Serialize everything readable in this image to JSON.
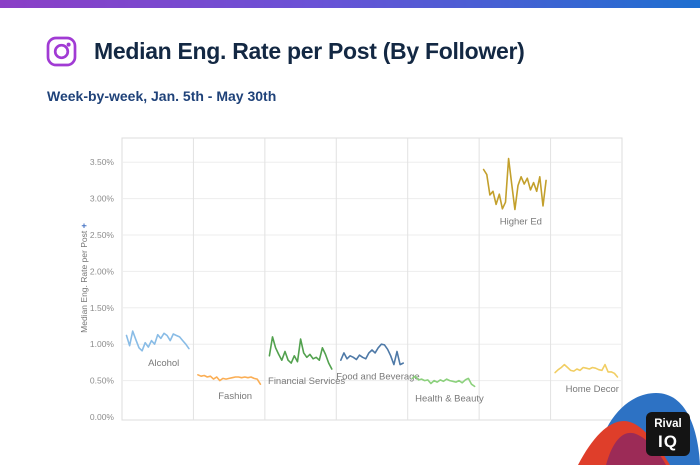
{
  "page": {
    "accent_bar_from": "#8B3FC6",
    "accent_bar_to": "#1E6FD0",
    "background": "#ffffff"
  },
  "header": {
    "title": "Median Eng. Rate per Post (By Follower)",
    "subtitle": "Week-by-week, Jan. 5th - May 30th",
    "platform_icon": "instagram-icon",
    "platform_icon_color": "#A13BD4",
    "title_color": "#132843",
    "subtitle_color": "#1F4279"
  },
  "brand": {
    "line1": "Rival",
    "line2": "IQ"
  },
  "chart_data": {
    "type": "line",
    "layout": "small-multiples-7-panels",
    "title": "Median Eng. Rate per Post (By Follower)",
    "subtitle": "Week-by-week, Jan. 5th - May 30th",
    "xlabel": "",
    "ylabel": "Median Eng. Rate per Post",
    "ylabel_icon": "sort-icon",
    "ylabel_icon_glyph": "+",
    "ylabel_icon_color": "#4472C4",
    "x_unit": "week",
    "x_range": "Jan 5 - May 30, weekly (21 points per series)",
    "ylim": [
      0,
      3.85
    ],
    "yticks": [
      "0.00%",
      "0.50%",
      "1.00%",
      "1.50%",
      "2.00%",
      "2.50%",
      "3.00%",
      "3.50%"
    ],
    "grid": true,
    "legend_position": "inline-labels-below-lines",
    "grid_color": "#EDEDED",
    "panel_divider_color": "#E2E2E2",
    "axis_text_color": "#8D8D8D",
    "label_text_color": "#797979",
    "series": [
      {
        "name": "Alcohol",
        "color": "#89BCE6",
        "values": [
          1.12,
          0.98,
          1.18,
          1.06,
          0.95,
          0.91,
          1.02,
          0.96,
          1.05,
          1.0,
          1.13,
          1.08,
          1.15,
          1.12,
          1.05,
          1.14,
          1.12,
          1.1,
          1.05,
          1.0,
          0.94
        ]
      },
      {
        "name": "Fashion",
        "color": "#FBAE54",
        "values": [
          0.58,
          0.56,
          0.57,
          0.55,
          0.56,
          0.52,
          0.55,
          0.5,
          0.53,
          0.52,
          0.53,
          0.54,
          0.55,
          0.55,
          0.54,
          0.55,
          0.54,
          0.55,
          0.53,
          0.52,
          0.45
        ]
      },
      {
        "name": "Financial Services",
        "color": "#52A14E",
        "values": [
          0.84,
          1.1,
          0.95,
          0.86,
          0.78,
          0.9,
          0.78,
          0.74,
          0.84,
          0.76,
          1.07,
          0.88,
          0.82,
          0.86,
          0.8,
          0.82,
          0.78,
          0.95,
          0.86,
          0.74,
          0.66
        ]
      },
      {
        "name": "Food and Beverage",
        "color": "#4E79A7",
        "values": [
          0.78,
          0.88,
          0.8,
          0.84,
          0.82,
          0.79,
          0.85,
          0.82,
          0.8,
          0.88,
          0.92,
          0.88,
          0.95,
          1.0,
          0.99,
          0.93,
          0.84,
          0.72,
          0.9,
          0.72,
          0.74
        ]
      },
      {
        "name": "Health & Beauty",
        "color": "#8CD17D",
        "values": [
          0.53,
          0.56,
          0.51,
          0.52,
          0.5,
          0.51,
          0.46,
          0.5,
          0.48,
          0.51,
          0.49,
          0.52,
          0.5,
          0.49,
          0.48,
          0.5,
          0.47,
          0.51,
          0.53,
          0.45,
          0.42
        ]
      },
      {
        "name": "Higher Ed",
        "color": "#C3A02C",
        "values": [
          3.4,
          3.33,
          3.05,
          3.1,
          2.92,
          3.06,
          2.86,
          2.95,
          3.55,
          3.2,
          2.85,
          3.18,
          3.3,
          3.2,
          3.28,
          3.12,
          3.22,
          3.1,
          3.3,
          2.9,
          3.25
        ]
      },
      {
        "name": "Home Decor",
        "color": "#F1CE63",
        "values": [
          0.61,
          0.65,
          0.68,
          0.72,
          0.68,
          0.64,
          0.63,
          0.66,
          0.64,
          0.68,
          0.67,
          0.66,
          0.68,
          0.67,
          0.65,
          0.64,
          0.72,
          0.62,
          0.62,
          0.6,
          0.55
        ]
      }
    ]
  }
}
